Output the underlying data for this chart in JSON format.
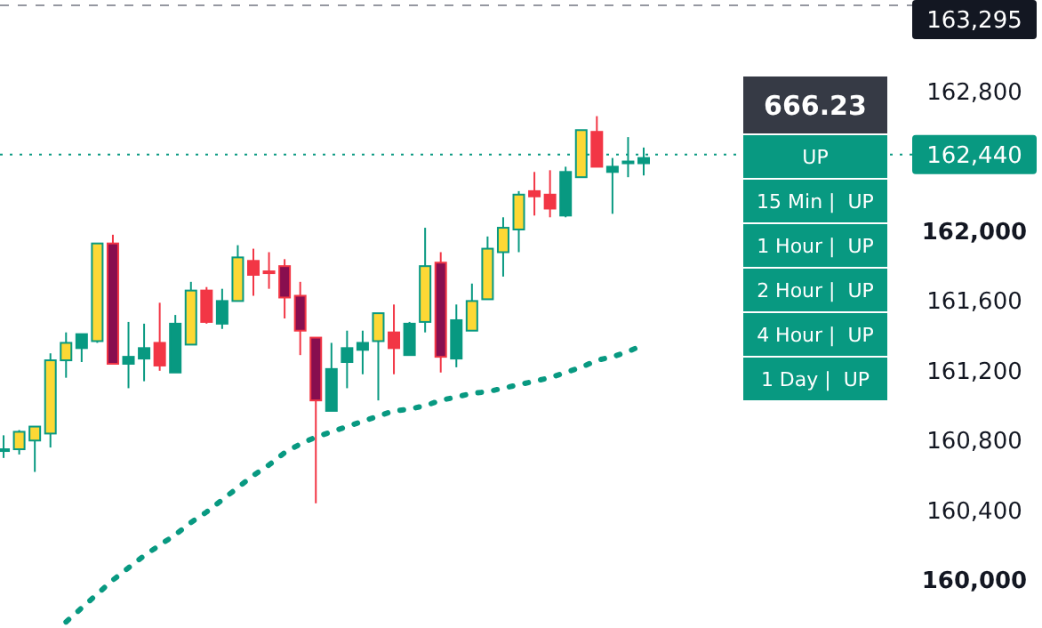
{
  "chart_data": {
    "type": "candlestick",
    "categories": [
      null,
      null,
      null,
      null,
      null,
      null,
      null,
      null,
      null,
      null,
      null,
      null,
      null,
      null,
      null,
      null,
      null,
      null,
      null,
      null,
      null,
      null,
      null,
      null,
      null,
      null,
      null,
      null,
      null,
      null,
      null,
      null,
      null,
      null,
      null,
      null,
      null,
      null,
      null,
      null,
      null,
      null
    ],
    "ohlc": [
      [
        160750,
        160830,
        160700,
        160750
      ],
      [
        160750,
        160860,
        160720,
        160850
      ],
      [
        160800,
        160880,
        160620,
        160880
      ],
      [
        160840,
        161300,
        160760,
        161260
      ],
      [
        161260,
        161420,
        161160,
        161360
      ],
      [
        161330,
        161410,
        161250,
        161410
      ],
      [
        161370,
        161930,
        161360,
        161930
      ],
      [
        161930,
        161980,
        161240,
        161240
      ],
      [
        161240,
        161480,
        161100,
        161280
      ],
      [
        161270,
        161470,
        161140,
        161330
      ],
      [
        161360,
        161590,
        161200,
        161230
      ],
      [
        161190,
        161520,
        161190,
        161470
      ],
      [
        161350,
        161710,
        161350,
        161660
      ],
      [
        161660,
        161680,
        161470,
        161480
      ],
      [
        161470,
        161670,
        161440,
        161600
      ],
      [
        161600,
        161920,
        161600,
        161850
      ],
      [
        161830,
        161900,
        161630,
        161750
      ],
      [
        161770,
        161880,
        161670,
        161760
      ],
      [
        161800,
        161840,
        161500,
        161620
      ],
      [
        161630,
        161710,
        161290,
        161430
      ],
      [
        161390,
        161390,
        160440,
        161030
      ],
      [
        160970,
        161360,
        160970,
        161210
      ],
      [
        161250,
        161430,
        161100,
        161330
      ],
      [
        161320,
        161430,
        161180,
        161360
      ],
      [
        161370,
        161530,
        161030,
        161530
      ],
      [
        161420,
        161580,
        161180,
        161330
      ],
      [
        161290,
        161480,
        161290,
        161470
      ],
      [
        161480,
        162020,
        161420,
        161800
      ],
      [
        161820,
        161880,
        161190,
        161280
      ],
      [
        161270,
        161580,
        161220,
        161490
      ],
      [
        161430,
        161700,
        161430,
        161600
      ],
      [
        161610,
        161970,
        161610,
        161900
      ],
      [
        161880,
        162080,
        161740,
        162020
      ],
      [
        162010,
        162230,
        161880,
        162210
      ],
      [
        162230,
        162340,
        162090,
        162200
      ],
      [
        162210,
        162350,
        162080,
        162130
      ],
      [
        162090,
        162370,
        162080,
        162340
      ],
      [
        162310,
        162580,
        162310,
        162580
      ],
      [
        162570,
        162660,
        162370,
        162370
      ],
      [
        162340,
        162420,
        162100,
        162370
      ],
      [
        162400,
        162540,
        162310,
        162400
      ],
      [
        162390,
        162480,
        162320,
        162420
      ]
    ],
    "colors": [
      "#089981",
      "#fdd835",
      "#fdd835",
      "#fdd835",
      "#fdd835",
      "#089981",
      "#fdd835",
      "#880e4f",
      "#089981",
      "#089981",
      "#f23645",
      "#089981",
      "#fdd835",
      "#f23645",
      "#089981",
      "#fdd835",
      "#f23645",
      "#f23645",
      "#880e4f",
      "#880e4f",
      "#880e4f",
      "#089981",
      "#089981",
      "#089981",
      "#fdd835",
      "#f23645",
      "#089981",
      "#fdd835",
      "#880e4f",
      "#089981",
      "#fdd835",
      "#fdd835",
      "#fdd835",
      "#fdd835",
      "#f23645",
      "#f23645",
      "#089981",
      "#fdd835",
      "#f23645",
      "#089981",
      "#089981",
      "#089981"
    ],
    "series": [
      {
        "type": "line",
        "color": "#089981",
        "line_style": "dashed",
        "values": [
          null,
          null,
          null,
          null,
          159760,
          159840,
          159920,
          160000,
          160070,
          160140,
          160200,
          160260,
          160330,
          160390,
          160460,
          160530,
          160600,
          160660,
          160730,
          160780,
          160820,
          160850,
          160880,
          160910,
          160940,
          160970,
          160980,
          161000,
          161030,
          161050,
          161070,
          161080,
          161100,
          161120,
          161140,
          161160,
          161190,
          161220,
          161260,
          161280,
          161310,
          161350
        ]
      }
    ],
    "ylim": [
      159725,
      163326
    ],
    "yticks": [
      {
        "value": 160000,
        "label": "160,000"
      },
      {
        "value": 160400,
        "label": "160,400"
      },
      {
        "value": 160800,
        "label": "160,800"
      },
      {
        "value": 161200,
        "label": "161,200"
      },
      {
        "value": 161600,
        "label": "161,600"
      },
      {
        "value": 162000,
        "label": "162,000"
      },
      {
        "value": 162800,
        "label": "162,800"
      }
    ],
    "tick_labels": "y",
    "grid": false,
    "ref_lines": [
      {
        "axis": "y",
        "value": 163295,
        "label": "163,295",
        "color": "#9598a1",
        "line_style": "dashed"
      },
      {
        "axis": "y",
        "value": 162440,
        "label": "162,440",
        "color": "#089981",
        "line_style": "dotted"
      }
    ],
    "annotations": [
      "666.23",
      "UP",
      "15 Min |  UP",
      "1 Hour |  UP",
      "2 Hour |  UP",
      "4 Hour |  UP",
      "1 Day |  UP"
    ]
  }
}
